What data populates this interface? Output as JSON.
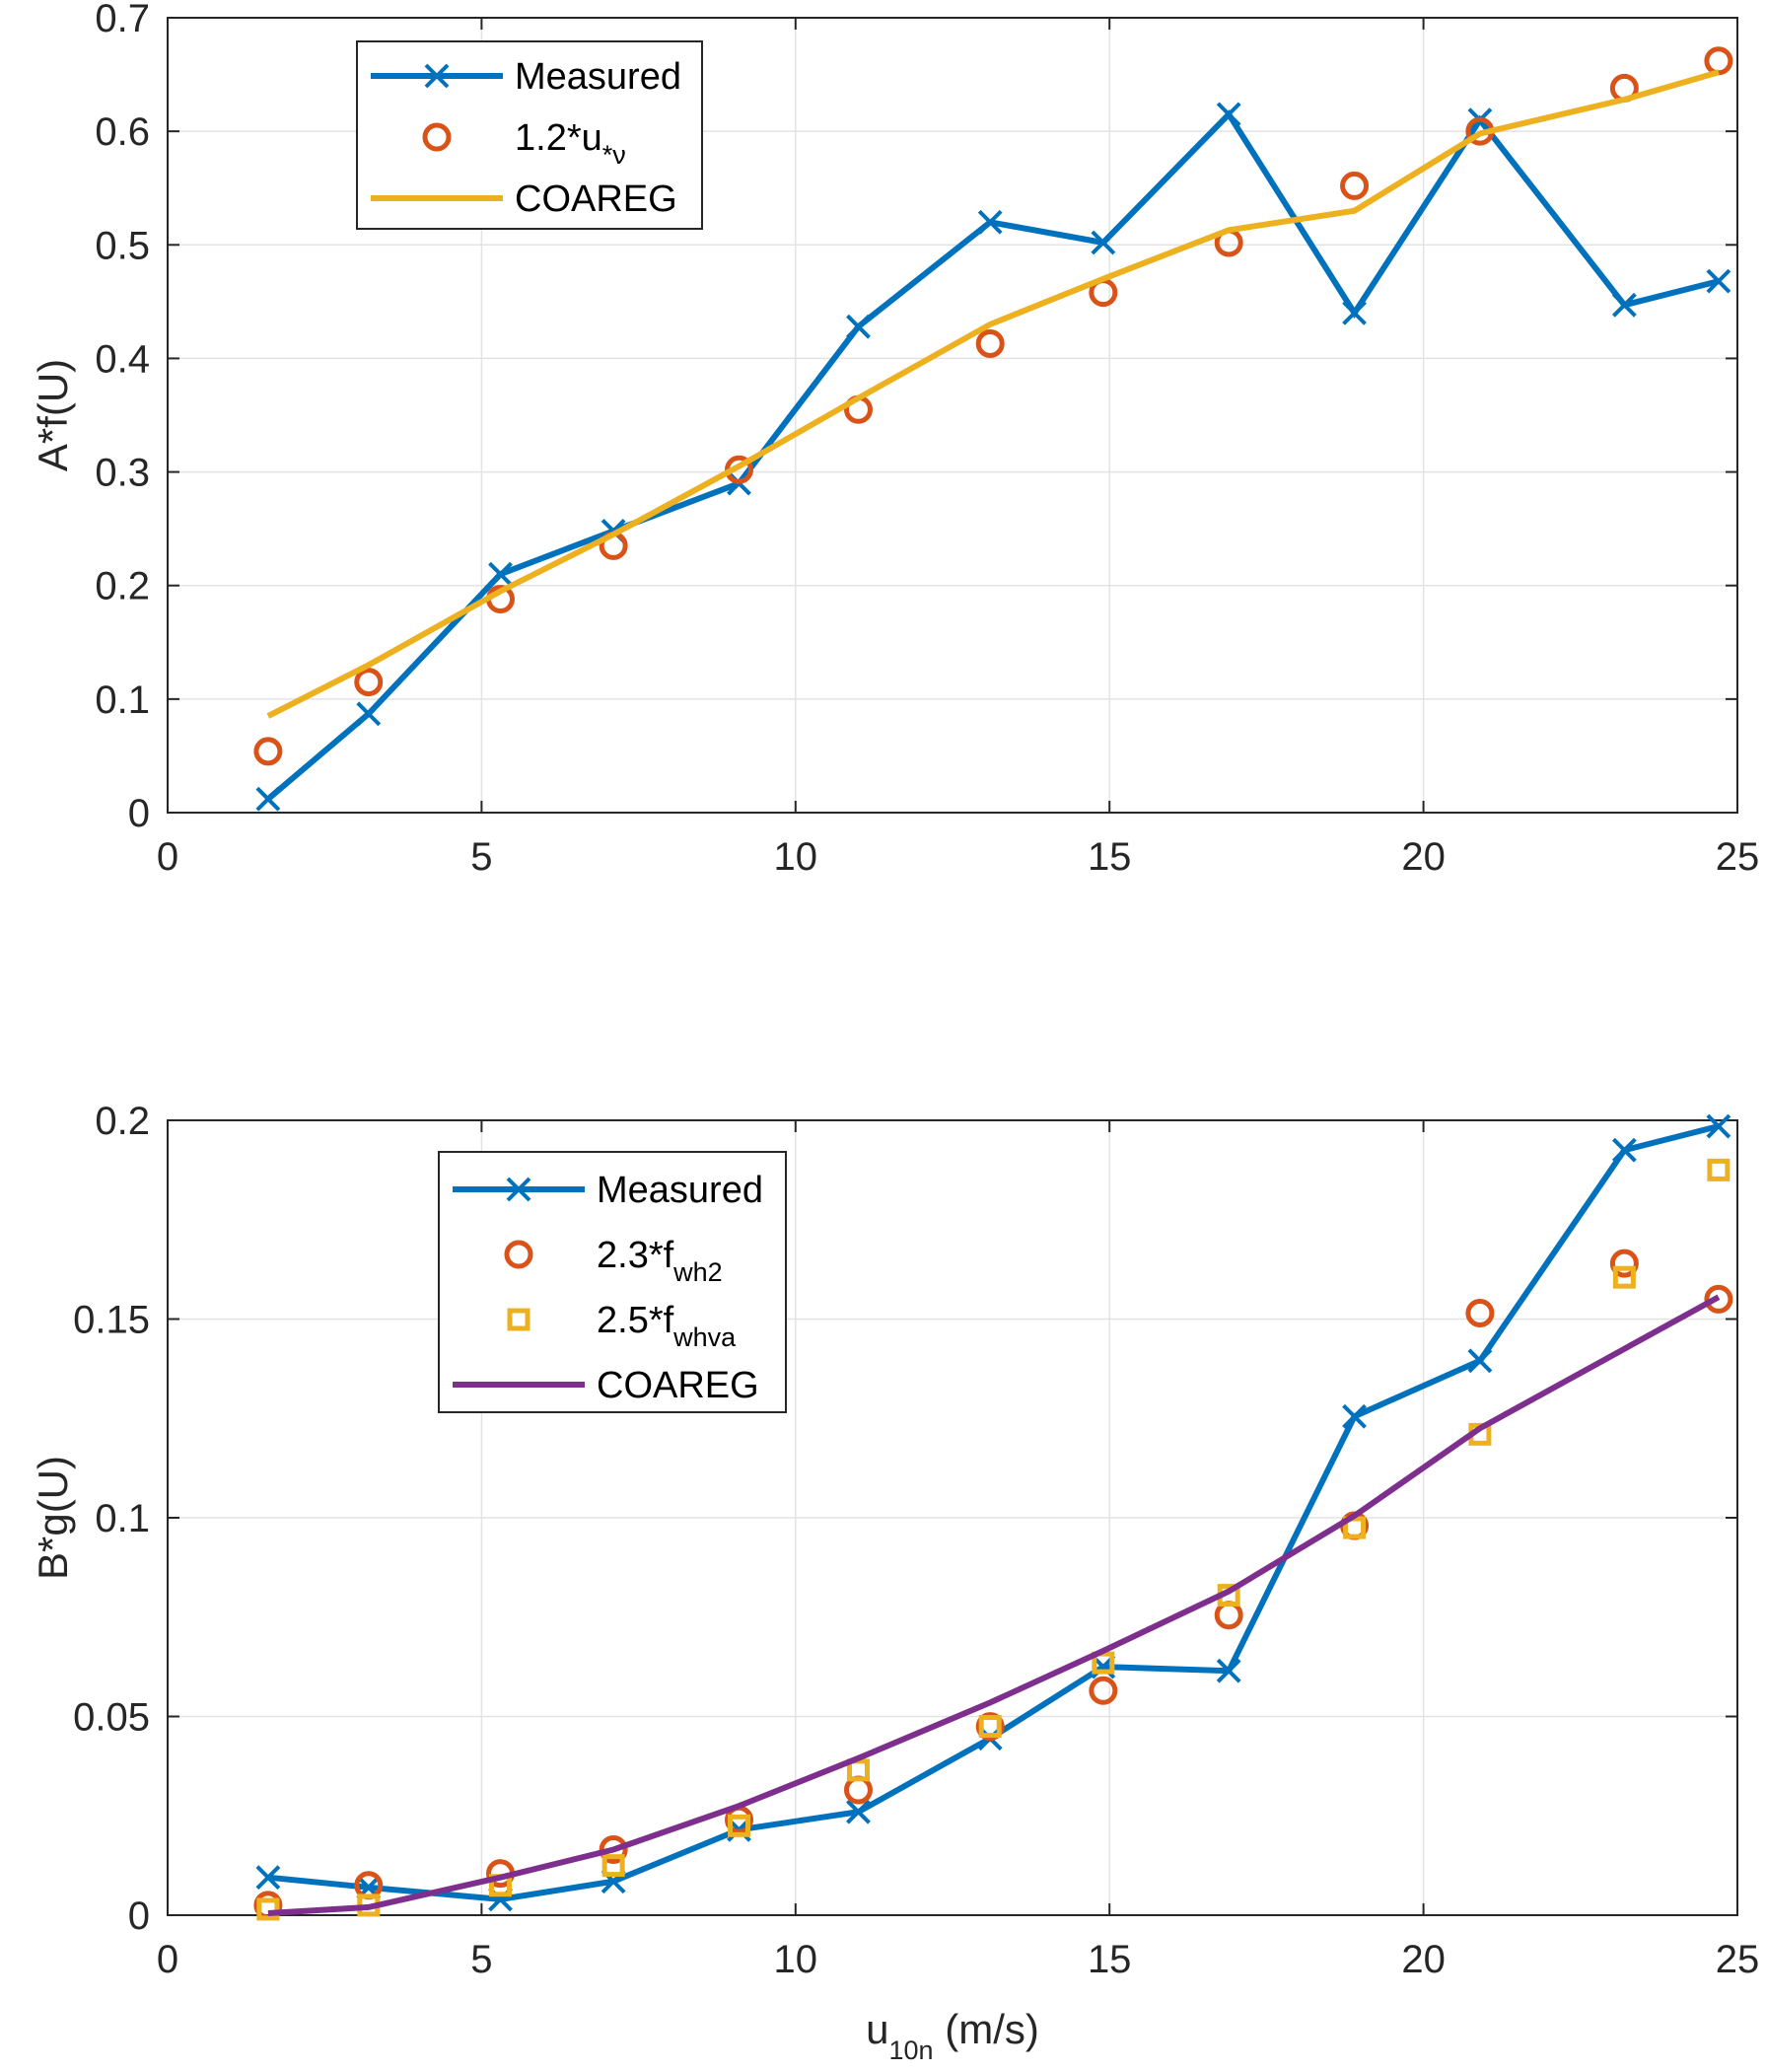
{
  "chart_data": [
    {
      "type": "line",
      "ylabel": "A*f(U)",
      "xlabel": "",
      "xlim": [
        0,
        25
      ],
      "ylim": [
        0,
        0.7
      ],
      "xticks": [
        "0",
        "5",
        "10",
        "15",
        "20",
        "25"
      ],
      "yticks": [
        "0",
        "0.1",
        "0.2",
        "0.3",
        "0.4",
        "0.5",
        "0.6",
        "0.7"
      ],
      "grid": true,
      "legend_position": "top-left",
      "series": [
        {
          "name": "Measured",
          "label_main": "Measured",
          "label_sub": "",
          "style": "line-x",
          "color": "#0072BD",
          "x": [
            1.6,
            3.2,
            5.3,
            7.1,
            9.1,
            11.0,
            13.1,
            14.9,
            16.9,
            18.9,
            20.9,
            23.2,
            24.7
          ],
          "y": [
            0.012,
            0.087,
            0.21,
            0.248,
            0.29,
            0.428,
            0.52,
            0.502,
            0.615,
            0.44,
            0.61,
            0.447,
            0.468
          ]
        },
        {
          "name": "1.2*u*ν",
          "label_main": "1.2*u",
          "label_sub": "*ν",
          "style": "circle",
          "color": "#D95319",
          "x": [
            1.6,
            3.2,
            5.3,
            7.1,
            9.1,
            11.0,
            13.1,
            14.9,
            16.9,
            18.9,
            20.9,
            23.2,
            24.7
          ],
          "y": [
            0.054,
            0.115,
            0.188,
            0.235,
            0.302,
            0.355,
            0.413,
            0.458,
            0.502,
            0.552,
            0.6,
            0.638,
            0.662
          ]
        },
        {
          "name": "COAREG",
          "label_main": "COAREG",
          "label_sub": "",
          "style": "line",
          "color": "#EDB120",
          "x": [
            1.6,
            3.2,
            5.3,
            7.1,
            9.1,
            11.0,
            13.1,
            14.9,
            16.9,
            18.9,
            20.9,
            23.2,
            24.7
          ],
          "y": [
            0.085,
            0.13,
            0.195,
            0.245,
            0.305,
            0.365,
            0.43,
            0.47,
            0.513,
            0.53,
            0.598,
            0.628,
            0.652
          ]
        }
      ]
    },
    {
      "type": "line",
      "ylabel": "B*g(U)",
      "xlabel_main": "u",
      "xlabel_sub": "10n",
      "xlabel_unit": " (m/s)",
      "xlim": [
        0,
        25
      ],
      "ylim": [
        0,
        0.2
      ],
      "xticks": [
        "0",
        "5",
        "10",
        "15",
        "20",
        "25"
      ],
      "yticks": [
        "0",
        "0.05",
        "0.1",
        "0.15",
        "0.2"
      ],
      "grid": true,
      "legend_position": "top-left",
      "series": [
        {
          "name": "Measured",
          "label_main": "Measured",
          "label_sub": "",
          "style": "line-x",
          "color": "#0072BD",
          "x": [
            1.6,
            3.2,
            5.3,
            7.1,
            9.1,
            11.0,
            13.1,
            14.9,
            16.9,
            18.9,
            20.9,
            23.2,
            24.7
          ],
          "y": [
            0.0095,
            0.007,
            0.004,
            0.0085,
            0.0215,
            0.026,
            0.0445,
            0.0625,
            0.0615,
            0.1255,
            0.1395,
            0.1925,
            0.1985
          ]
        },
        {
          "name": "2.3*fwh2",
          "label_main": "2.3*f",
          "label_sub": "wh2",
          "style": "circle",
          "color": "#D95319",
          "x": [
            1.6,
            3.2,
            5.3,
            7.1,
            9.1,
            11.0,
            13.1,
            14.9,
            16.9,
            18.9,
            20.9,
            23.2,
            24.7
          ],
          "y": [
            0.0025,
            0.0075,
            0.0105,
            0.0165,
            0.024,
            0.0315,
            0.0475,
            0.0565,
            0.0755,
            0.098,
            0.1515,
            0.164,
            0.155
          ]
        },
        {
          "name": "2.5*fwhva",
          "label_main": "2.5*f",
          "label_sub": "whva",
          "style": "square",
          "color": "#EDB120",
          "x": [
            1.6,
            3.2,
            5.3,
            7.1,
            9.1,
            11.0,
            13.1,
            14.9,
            16.9,
            18.9,
            20.9,
            23.2,
            24.7
          ],
          "y": [
            0.0015,
            0.0025,
            0.0075,
            0.0125,
            0.0225,
            0.0365,
            0.0475,
            0.0635,
            0.0805,
            0.0975,
            0.121,
            0.1605,
            0.1875
          ]
        },
        {
          "name": "COAREG",
          "label_main": "COAREG",
          "label_sub": "",
          "style": "line",
          "color": "#7E2F8E",
          "x": [
            1.6,
            3.2,
            5.3,
            7.1,
            9.1,
            11.0,
            13.1,
            14.9,
            16.9,
            18.9,
            20.9,
            23.2,
            24.7
          ],
          "y": [
            0.0005,
            0.002,
            0.0095,
            0.0165,
            0.0275,
            0.0395,
            0.0535,
            0.0665,
            0.0815,
            0.1005,
            0.1225,
            0.1425,
            0.1555
          ]
        }
      ]
    }
  ]
}
